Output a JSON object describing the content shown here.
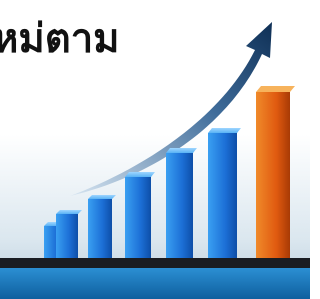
{
  "headline": "หม่ตาม"
}
